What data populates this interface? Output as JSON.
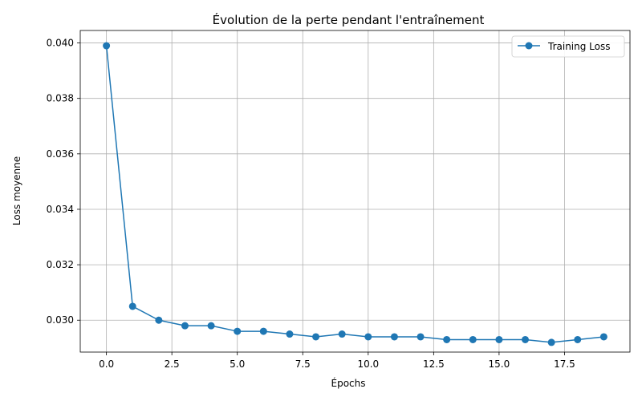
{
  "chart_data": {
    "type": "line",
    "title": "Évolution de la perte pendant l'entraînement",
    "xlabel": "Épochs",
    "ylabel": "Loss moyenne",
    "xlim": [
      -1,
      20
    ],
    "ylim": [
      0.02885,
      0.04045
    ],
    "xticks": [
      0.0,
      2.5,
      5.0,
      7.5,
      10.0,
      12.5,
      15.0,
      17.5
    ],
    "xtick_labels": [
      "0.0",
      "2.5",
      "5.0",
      "7.5",
      "10.0",
      "12.5",
      "15.0",
      "17.5"
    ],
    "yticks": [
      0.03,
      0.032,
      0.034,
      0.036,
      0.038,
      0.04
    ],
    "ytick_labels": [
      "0.030",
      "0.032",
      "0.034",
      "0.036",
      "0.038",
      "0.040"
    ],
    "grid": true,
    "legend_position": "top-right",
    "series": [
      {
        "name": "Training Loss",
        "color": "#1f77b4",
        "marker": "circle",
        "x": [
          0,
          1,
          2,
          3,
          4,
          5,
          6,
          7,
          8,
          9,
          10,
          11,
          12,
          13,
          14,
          15,
          16,
          17,
          18,
          19
        ],
        "values": [
          0.0399,
          0.0305,
          0.03,
          0.0298,
          0.0298,
          0.0296,
          0.0296,
          0.0295,
          0.0294,
          0.0295,
          0.0294,
          0.0294,
          0.0294,
          0.0293,
          0.0293,
          0.0293,
          0.0293,
          0.0292,
          0.0293,
          0.0294
        ]
      }
    ]
  }
}
